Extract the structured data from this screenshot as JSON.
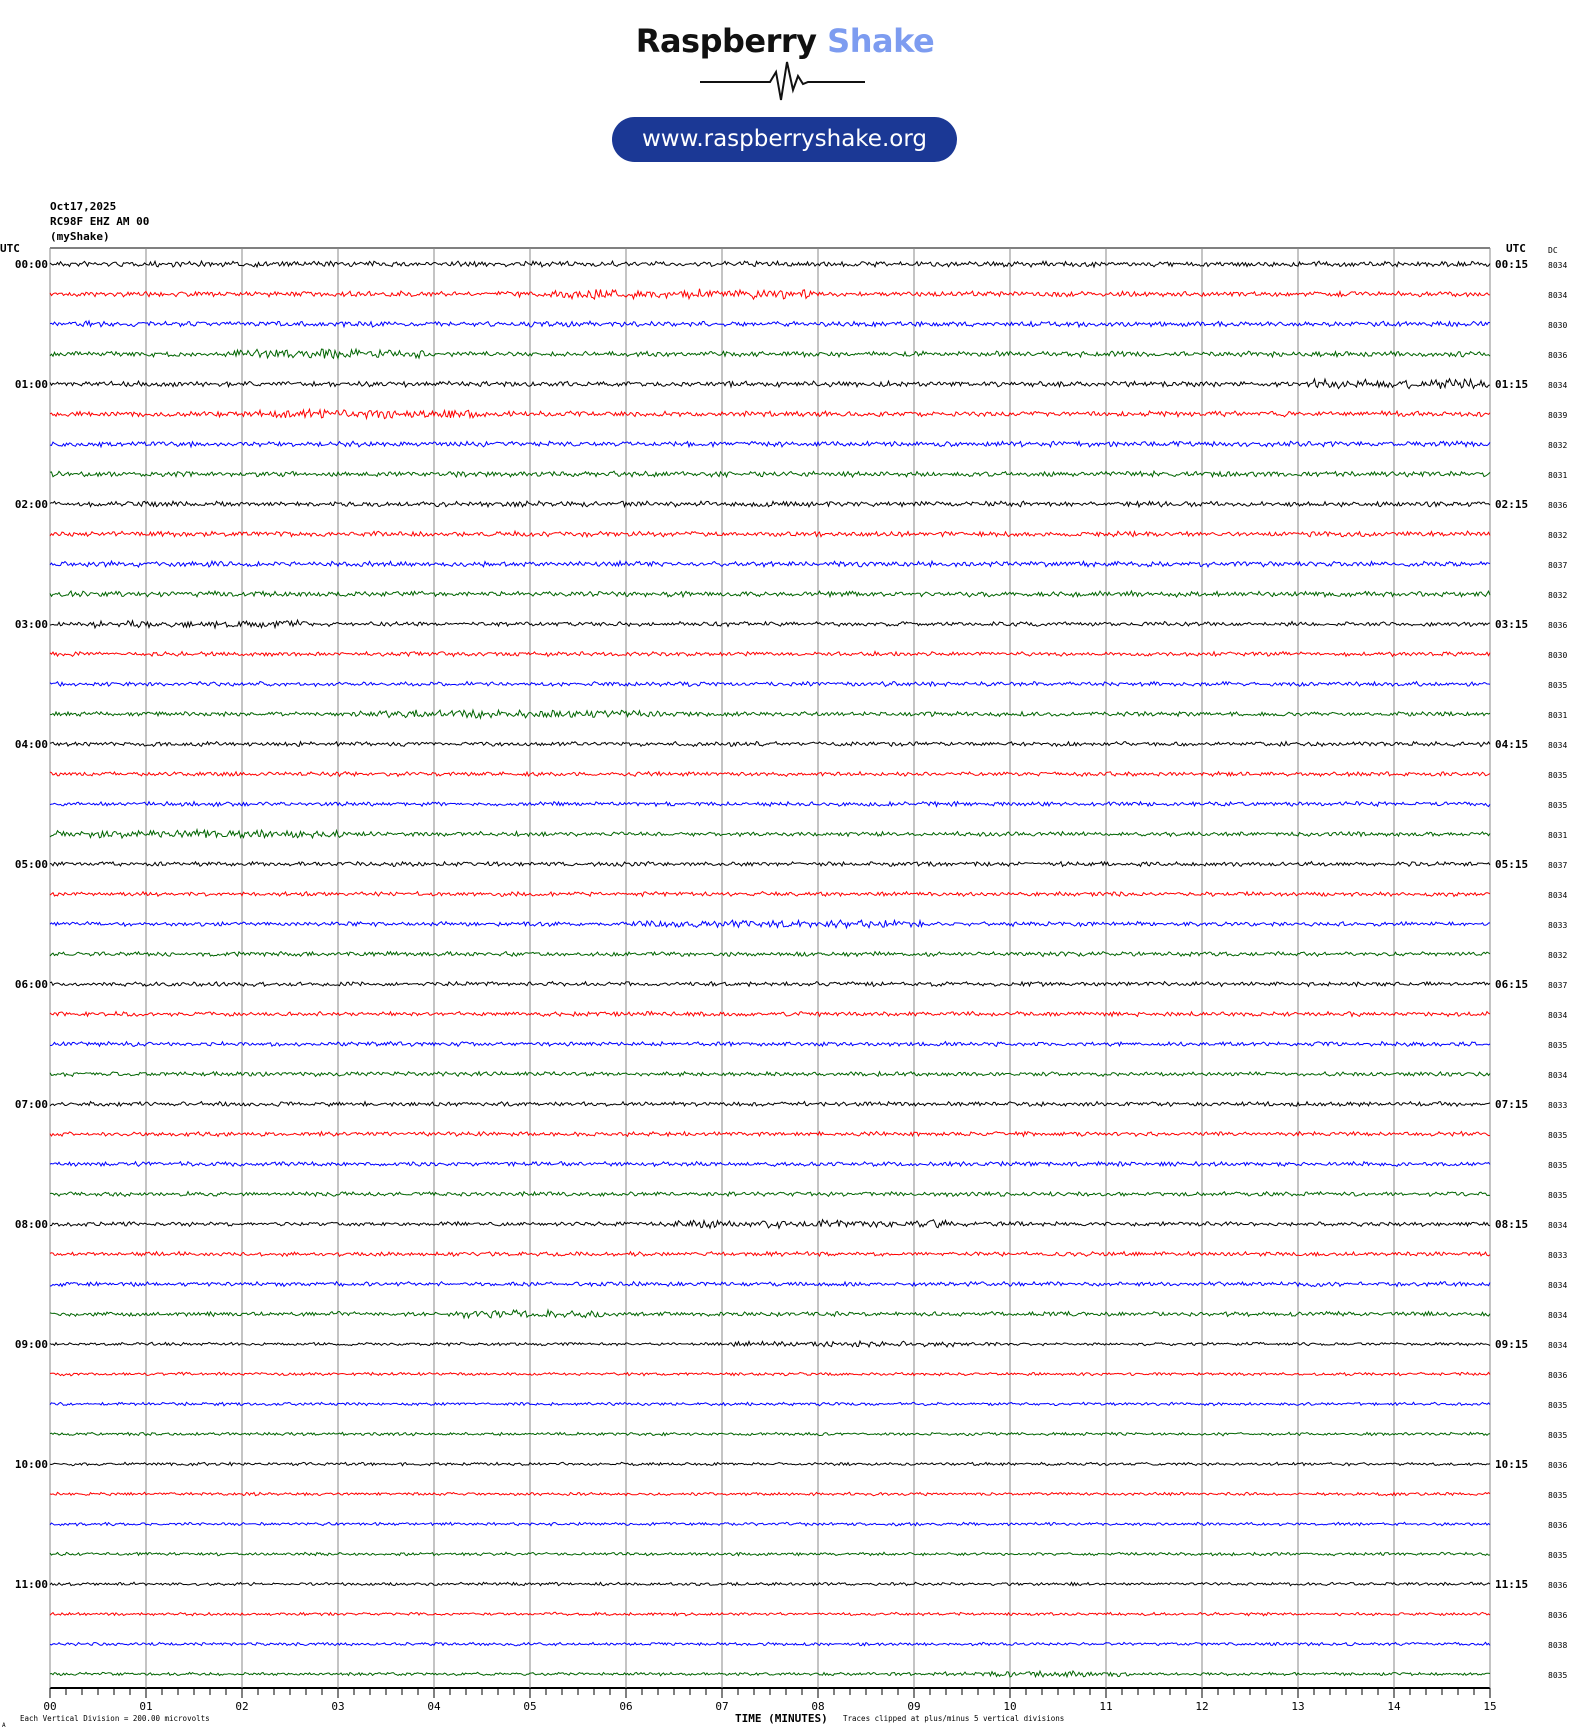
{
  "logo": {
    "word1": "Raspberry",
    "word2": "Shake",
    "url": "www.raspberryshake.org",
    "pill_color": "#1b3895",
    "accent_color": "#7d9cf0"
  },
  "header": {
    "date": "Oct17,2025",
    "station": "RC98F EHZ AM 00",
    "source": "(myShake)"
  },
  "chart_data": {
    "type": "line",
    "title": "",
    "xlabel": "TIME (MINUTES)",
    "xlim": [
      0,
      15
    ],
    "x_ticks": [
      "00",
      "01",
      "02",
      "03",
      "04",
      "05",
      "06",
      "07",
      "08",
      "09",
      "10",
      "11",
      "12",
      "13",
      "14",
      "15"
    ],
    "left_axis_title": "UTC",
    "right_axis_title": "UTC",
    "dc_title": "DC",
    "left_hour_labels": [
      "00:00",
      "01:00",
      "02:00",
      "03:00",
      "04:00",
      "05:00",
      "06:00",
      "07:00",
      "08:00",
      "09:00",
      "10:00",
      "11:00"
    ],
    "right_hour_labels": [
      "00:15",
      "01:15",
      "02:15",
      "03:15",
      "04:15",
      "05:15",
      "06:15",
      "07:15",
      "08:15",
      "09:15",
      "10:15",
      "11:15"
    ],
    "trace_colors": [
      "#000000",
      "#ff0000",
      "#0000ff",
      "#006400"
    ],
    "dc_offsets": [
      8034,
      8034,
      8030,
      8036,
      8034,
      8039,
      8032,
      8031,
      8036,
      8032,
      8037,
      8032,
      8036,
      8030,
      8035,
      8031,
      8034,
      8035,
      8035,
      8031,
      8037,
      8034,
      8033,
      8032,
      8037,
      8034,
      8035,
      8034,
      8033,
      8035,
      8035,
      8035,
      8034,
      8033,
      8034,
      8034,
      8034,
      8036,
      8035,
      8035,
      8036,
      8035,
      8036,
      8035,
      8036,
      8036,
      8038,
      8035
    ],
    "grid": true,
    "scale_note": "Each Vertical Division =  200.00 microvolts",
    "clip_note": "Traces clipped at plus/minus 5 vertical divisions",
    "corner_mark": "A"
  }
}
